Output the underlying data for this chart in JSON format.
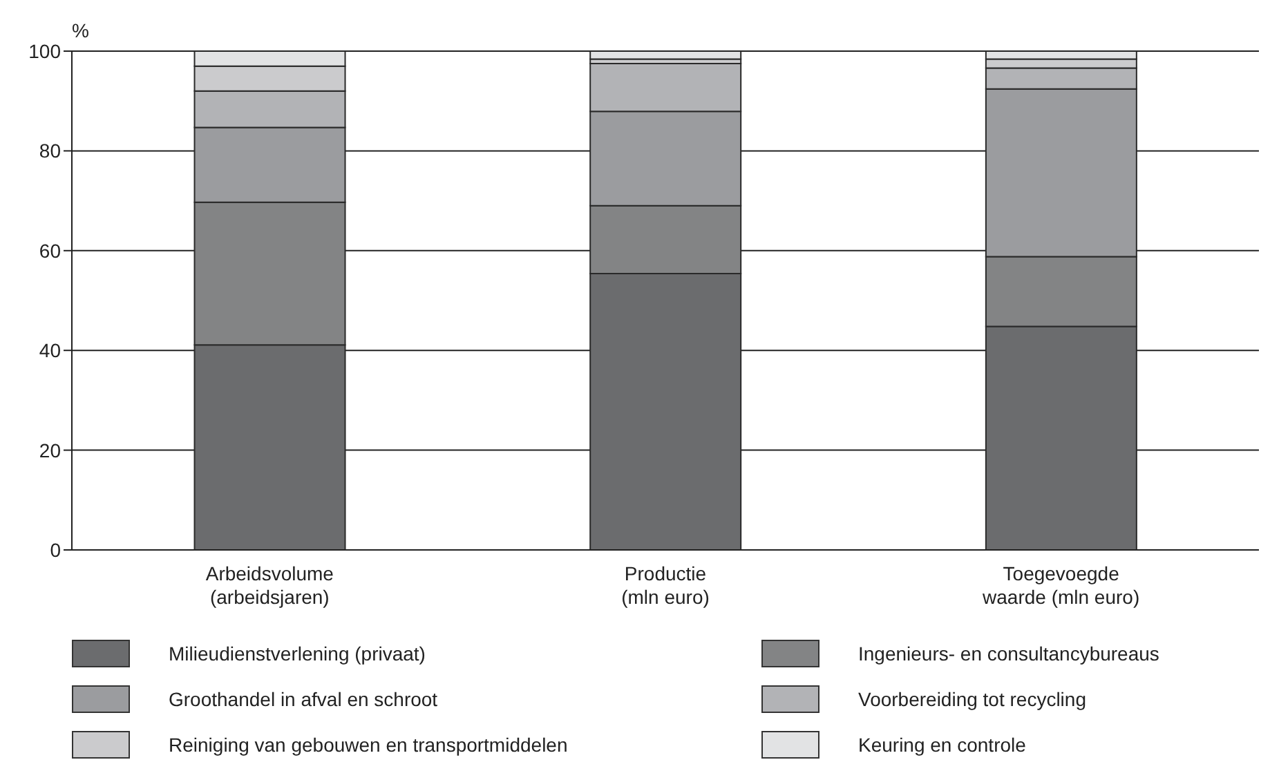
{
  "chart_data": {
    "type": "bar",
    "stacked": true,
    "ylabel": "%",
    "categories": [
      "Arbeidsvolume\n(arbeidsjaren)",
      "Productie\n(mln euro)",
      "Toegevoegde\nwaarde (mln euro)"
    ],
    "series": [
      {
        "name": "Milieudienstverlening (privaat)",
        "color": "#6b6c6e",
        "values": [
          41.1,
          55.4,
          44.8
        ]
      },
      {
        "name": "Ingenieurs- en consultancybureaus",
        "color": "#838485",
        "values": [
          28.6,
          13.6,
          14.0
        ]
      },
      {
        "name": "Groothandel in afval en schroot",
        "color": "#9b9c9f",
        "values": [
          15.0,
          18.9,
          33.6
        ]
      },
      {
        "name": "Voorbereiding tot recycling",
        "color": "#b2b3b6",
        "values": [
          7.3,
          9.6,
          4.2
        ]
      },
      {
        "name": "Reiniging van gebouwen en transportmiddelen",
        "color": "#cbcbcd",
        "values": [
          5.0,
          0.9,
          1.8
        ]
      },
      {
        "name": "Keuring en controle",
        "color": "#e2e3e4",
        "values": [
          3.0,
          1.6,
          1.6
        ]
      }
    ],
    "ylim": [
      0,
      100
    ],
    "yticks": [
      0,
      20,
      40,
      60,
      80,
      100
    ],
    "grid": "y",
    "legend": "bottom"
  }
}
